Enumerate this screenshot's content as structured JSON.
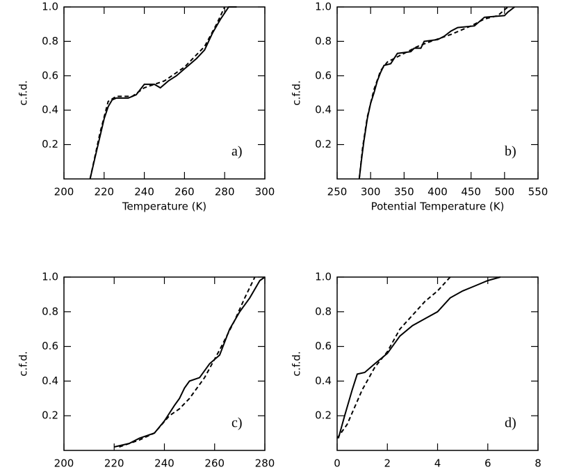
{
  "chart_data": [
    {
      "type": "line",
      "x_label": "Temperature (K)",
      "y_label": "c.f.d.",
      "annotation": "a)",
      "xlim": [
        200,
        300
      ],
      "xticks": [
        200,
        220,
        240,
        260,
        280,
        300
      ],
      "ylim": [
        0,
        1
      ],
      "yticks": [
        0.2,
        0.4,
        0.6,
        0.8,
        {
          "value": 1,
          "label": "1.0"
        }
      ],
      "series": [
        {
          "color": "#000",
          "dash": "solid",
          "x": [
            213,
            215,
            218,
            220,
            222,
            224,
            226,
            232,
            236,
            240,
            245,
            248,
            252,
            256,
            260,
            262,
            266,
            270,
            274,
            278,
            282,
            286
          ],
          "values": [
            0,
            0.1,
            0.25,
            0.35,
            0.42,
            0.46,
            0.47,
            0.47,
            0.49,
            0.55,
            0.55,
            0.53,
            0.57,
            0.6,
            0.64,
            0.66,
            0.7,
            0.75,
            0.85,
            0.93,
            1.0,
            1.0
          ]
        },
        {
          "color": "#000",
          "dash": "dashed",
          "x": [
            213,
            218,
            222,
            226,
            234,
            240,
            250,
            260,
            270,
            276,
            280
          ],
          "values": [
            0,
            0.27,
            0.45,
            0.48,
            0.48,
            0.53,
            0.57,
            0.65,
            0.77,
            0.9,
            1.0
          ]
        }
      ]
    },
    {
      "type": "line",
      "x_label": "Potential Temperature (K)",
      "y_label": "c.f.d.",
      "annotation": "b)",
      "xlim": [
        250,
        550
      ],
      "xticks": [
        250,
        300,
        350,
        400,
        450,
        500,
        550
      ],
      "ylim": [
        0,
        1
      ],
      "yticks": [
        0.2,
        0.4,
        0.6,
        0.8,
        {
          "value": 1,
          "label": "1.0"
        }
      ],
      "series": [
        {
          "color": "#000",
          "dash": "solid",
          "x": [
            283,
            286,
            290,
            295,
            300,
            305,
            310,
            315,
            320,
            330,
            335,
            340,
            360,
            365,
            375,
            380,
            400,
            410,
            420,
            430,
            455,
            470,
            500,
            505,
            515
          ],
          "values": [
            0,
            0.1,
            0.22,
            0.35,
            0.44,
            0.5,
            0.57,
            0.62,
            0.66,
            0.67,
            0.7,
            0.73,
            0.74,
            0.76,
            0.76,
            0.8,
            0.81,
            0.83,
            0.86,
            0.88,
            0.89,
            0.94,
            0.95,
            0.97,
            1.0
          ]
        },
        {
          "color": "#000",
          "dash": "dashed",
          "x": [
            283,
            288,
            295,
            305,
            315,
            325,
            345,
            370,
            390,
            420,
            450,
            470,
            490,
            505
          ],
          "values": [
            0,
            0.18,
            0.36,
            0.52,
            0.63,
            0.68,
            0.72,
            0.77,
            0.8,
            0.84,
            0.89,
            0.93,
            0.95,
            1.0
          ]
        }
      ]
    },
    {
      "type": "line",
      "x_label": "Dew Point Temperature (K)",
      "y_label": "c.f.d.",
      "annotation": "c)",
      "xlim": [
        200,
        280
      ],
      "xticks": [
        200,
        220,
        240,
        260,
        280
      ],
      "ylim": [
        0,
        1
      ],
      "yticks": [
        0.2,
        0.4,
        0.6,
        0.8,
        {
          "value": 1,
          "label": "1.0"
        }
      ],
      "series": [
        {
          "color": "#000",
          "dash": "solid",
          "x": [
            220,
            226,
            230,
            236,
            240,
            244,
            246,
            248,
            250,
            254,
            258,
            262,
            266,
            270,
            274,
            278,
            280
          ],
          "values": [
            0.02,
            0.04,
            0.07,
            0.1,
            0.17,
            0.26,
            0.3,
            0.36,
            0.4,
            0.42,
            0.5,
            0.55,
            0.7,
            0.8,
            0.88,
            0.98,
            1.0
          ]
        },
        {
          "color": "#000",
          "dash": "dashed",
          "x": [
            222,
            230,
            236,
            242,
            246,
            250,
            256,
            262,
            268,
            272,
            276
          ],
          "values": [
            0.02,
            0.06,
            0.1,
            0.2,
            0.24,
            0.3,
            0.42,
            0.58,
            0.75,
            0.88,
            1.0
          ]
        }
      ]
    },
    {
      "type": "line",
      "x_label": "Mixing Ratio (g/Kg)",
      "y_label": "c.f.d.",
      "annotation": "d)",
      "xlim": [
        0,
        8
      ],
      "xticks": [
        0,
        2,
        4,
        6,
        8
      ],
      "ylim": [
        0,
        1
      ],
      "yticks": [
        0.2,
        0.4,
        0.6,
        0.8,
        {
          "value": 1,
          "label": "1.0"
        }
      ],
      "series": [
        {
          "color": "#000",
          "dash": "solid",
          "x": [
            0.05,
            0.3,
            0.6,
            0.8,
            1.1,
            1.5,
            2,
            2.5,
            3,
            3.5,
            4,
            4.5,
            5,
            5.5,
            6,
            6.5
          ],
          "values": [
            0.07,
            0.2,
            0.35,
            0.44,
            0.45,
            0.5,
            0.56,
            0.66,
            0.72,
            0.76,
            0.8,
            0.88,
            0.92,
            0.95,
            0.98,
            1.0
          ]
        },
        {
          "color": "#000",
          "dash": "dashed",
          "x": [
            0,
            0.4,
            1,
            1.5,
            2,
            2.5,
            3,
            3.5,
            4,
            4.5
          ],
          "values": [
            0.07,
            0.15,
            0.35,
            0.48,
            0.57,
            0.7,
            0.78,
            0.86,
            0.92,
            1.0
          ]
        }
      ]
    }
  ]
}
